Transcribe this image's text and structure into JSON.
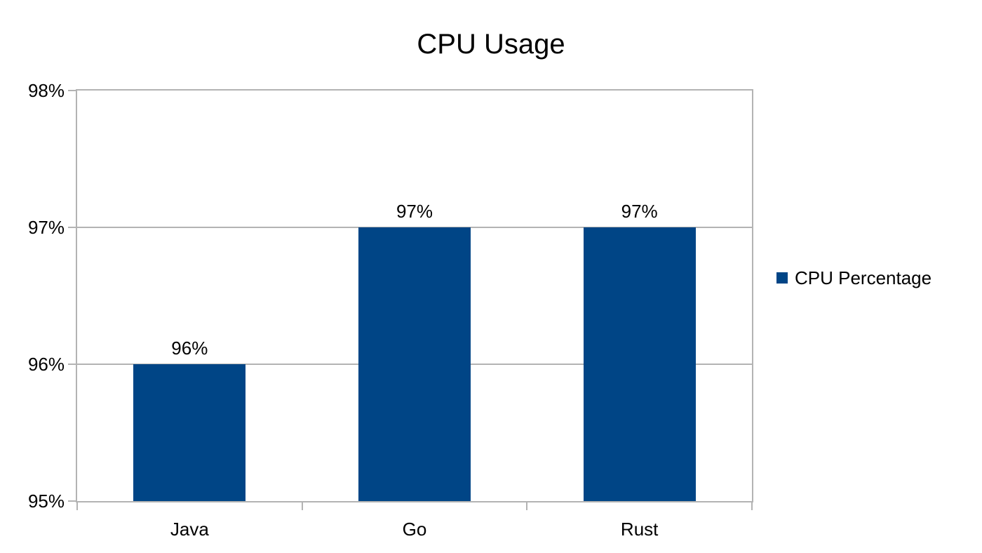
{
  "chart_data": {
    "type": "bar",
    "title": "CPU Usage",
    "categories": [
      "Java",
      "Go",
      "Rust"
    ],
    "series": [
      {
        "name": "CPU Percentage",
        "values": [
          96,
          97,
          97
        ]
      }
    ],
    "data_labels": [
      "96%",
      "97%",
      "97%"
    ],
    "y_axis": {
      "ticks": [
        {
          "value": 95,
          "label": "95%"
        },
        {
          "value": 96,
          "label": "96%"
        },
        {
          "value": 97,
          "label": "97%"
        },
        {
          "value": 98,
          "label": "98%"
        }
      ],
      "ylim": [
        95,
        98
      ]
    },
    "xlabel": "",
    "ylabel": "",
    "grid": true,
    "legend_position": "right",
    "colors": {
      "bar": "#004586",
      "grid": "#b3b3b3",
      "text": "#000000",
      "background": "#ffffff"
    }
  },
  "legend": {
    "items": [
      {
        "label": "CPU Percentage",
        "swatch_color": "#004586",
        "swatch_icon": "legend-square-icon"
      }
    ]
  }
}
